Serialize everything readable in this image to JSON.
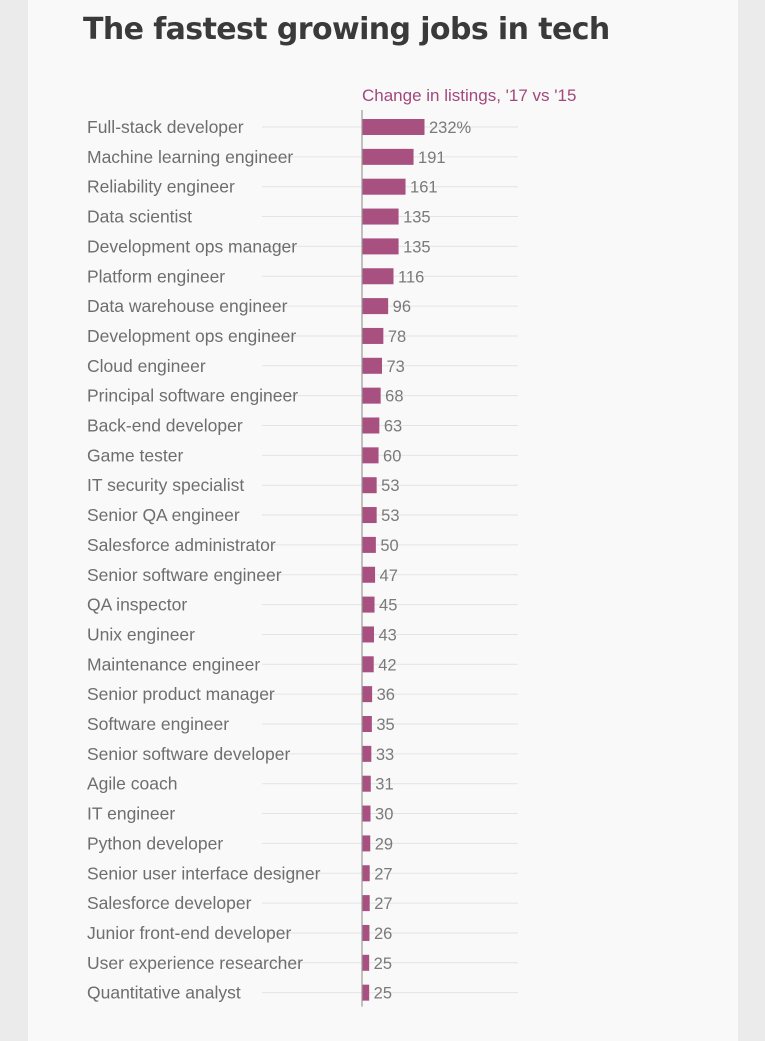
{
  "page": {
    "background": "#ebebeb",
    "card_background": "#f9f9f9"
  },
  "colors": {
    "bar": "#a8507f",
    "subtitle": "#a2487c",
    "title": "#3a3a3a",
    "label": "#6e6e6e"
  },
  "chart_data": {
    "type": "bar",
    "orientation": "horizontal",
    "title": "The fastest growing jobs in tech",
    "subtitle": "Change in listings, '17 vs '15",
    "value_suffix_first": "%",
    "grid": true,
    "categories": [
      "Full-stack developer",
      "Machine learning engineer",
      "Reliability engineer",
      "Data scientist",
      "Development ops manager",
      "Platform engineer",
      "Data warehouse engineer",
      "Development ops engineer",
      "Cloud engineer",
      "Principal software engineer",
      "Back-end developer",
      "Game tester",
      "IT security specialist",
      "Senior QA engineer",
      "Salesforce administrator",
      "Senior software engineer",
      "QA inspector",
      "Unix engineer",
      "Maintenance engineer",
      "Senior product manager",
      "Software engineer",
      "Senior software developer",
      "Agile coach",
      "IT engineer",
      "Python developer",
      "Senior user interface designer",
      "Salesforce developer",
      "Junior front-end developer",
      "User experience researcher",
      "Quantitative analyst"
    ],
    "values": [
      232,
      191,
      161,
      135,
      135,
      116,
      96,
      78,
      73,
      68,
      63,
      60,
      53,
      53,
      50,
      47,
      45,
      43,
      42,
      36,
      35,
      33,
      31,
      30,
      29,
      27,
      27,
      26,
      25,
      25
    ],
    "value_labels": [
      "232%",
      "191",
      "161",
      "135",
      "135",
      "116",
      "96",
      "78",
      "73",
      "68",
      "63",
      "60",
      "53",
      "53",
      "50",
      "47",
      "45",
      "43",
      "42",
      "36",
      "35",
      "33",
      "31",
      "30",
      "29",
      "27",
      "27",
      "26",
      "25",
      "25"
    ]
  }
}
